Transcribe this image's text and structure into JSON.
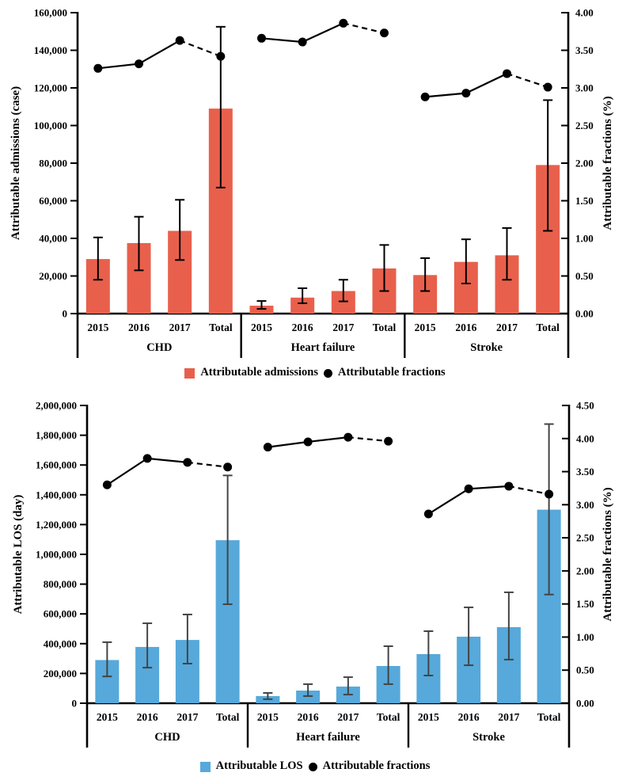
{
  "figure_background": "#ffffff",
  "chart_data": [
    {
      "id": "attributable-admissions",
      "type": "bar",
      "combo": "bar+line",
      "axis_left": {
        "label": "Attributable admissions (case)",
        "min": 0,
        "max": 160000,
        "step": 20000
      },
      "axis_right": {
        "label": "Attributable fractions (%)",
        "min": 0,
        "max": 4.0,
        "step": 0.5
      },
      "bar_color": "#E8604C",
      "error_color": "#000000",
      "line_color": "#000000",
      "categories_per_group": [
        "2015",
        "2016",
        "2017",
        "Total"
      ],
      "groups": [
        {
          "label": "CHD",
          "bars": [
            29000,
            37500,
            44000,
            109000
          ],
          "errors_low": [
            18000,
            23000,
            28500,
            67000
          ],
          "errors_high": [
            40500,
            51500,
            60500,
            152500
          ],
          "fractions": [
            3.26,
            3.32,
            3.63,
            3.42
          ]
        },
        {
          "label": "Heart failure",
          "bars": [
            4200,
            8500,
            12000,
            24000
          ],
          "errors_low": [
            2500,
            5500,
            6500,
            12000
          ],
          "errors_high": [
            6700,
            13500,
            18000,
            36500
          ],
          "fractions": [
            3.66,
            3.61,
            3.86,
            3.73
          ]
        },
        {
          "label": "Stroke",
          "bars": [
            20500,
            27500,
            31000,
            79000
          ],
          "errors_low": [
            12000,
            16000,
            18000,
            44000
          ],
          "errors_high": [
            29500,
            39500,
            45500,
            113500
          ],
          "fractions": [
            2.88,
            2.93,
            3.19,
            3.01
          ]
        }
      ],
      "line_style_note": "solid 2015-2017, dashed 2017-Total, dots on every point",
      "legend": {
        "bar_label": "Attributable admissions",
        "line_label": "Attributable fractions"
      }
    },
    {
      "id": "attributable-los",
      "type": "bar",
      "combo": "bar+line",
      "axis_left": {
        "label": "Attributable LOS (day)",
        "min": 0,
        "max": 2000000,
        "step": 200000
      },
      "axis_right": {
        "label": "Attributable fractions (%)",
        "min": 0,
        "max": 4.5,
        "step": 0.5
      },
      "bar_color": "#56A9DA",
      "error_color": "#444444",
      "line_color": "#000000",
      "categories_per_group": [
        "2015",
        "2016",
        "2017",
        "Total"
      ],
      "groups": [
        {
          "label": "CHD",
          "bars": [
            290000,
            378000,
            425000,
            1095000
          ],
          "errors_low": [
            180000,
            239000,
            266000,
            665000
          ],
          "errors_high": [
            410000,
            537000,
            596000,
            1530000
          ],
          "fractions": [
            3.3,
            3.7,
            3.64,
            3.57
          ]
        },
        {
          "label": "Heart failure",
          "bars": [
            48000,
            85000,
            112000,
            250000
          ],
          "errors_low": [
            27000,
            48000,
            58000,
            128000
          ],
          "errors_high": [
            69000,
            128000,
            175000,
            383000
          ],
          "fractions": [
            3.87,
            3.95,
            4.02,
            3.96
          ]
        },
        {
          "label": "Stroke",
          "bars": [
            330000,
            447000,
            511000,
            1300000
          ],
          "errors_low": [
            186000,
            255000,
            293000,
            730000
          ],
          "errors_high": [
            484000,
            644000,
            745000,
            1875000
          ],
          "fractions": [
            2.86,
            3.24,
            3.28,
            3.16
          ]
        }
      ],
      "line_style_note": "solid 2015-2017, dashed 2017-Total, dots on every point",
      "legend": {
        "bar_label": "Attributable LOS",
        "line_label": "Attributable fractions"
      }
    }
  ]
}
